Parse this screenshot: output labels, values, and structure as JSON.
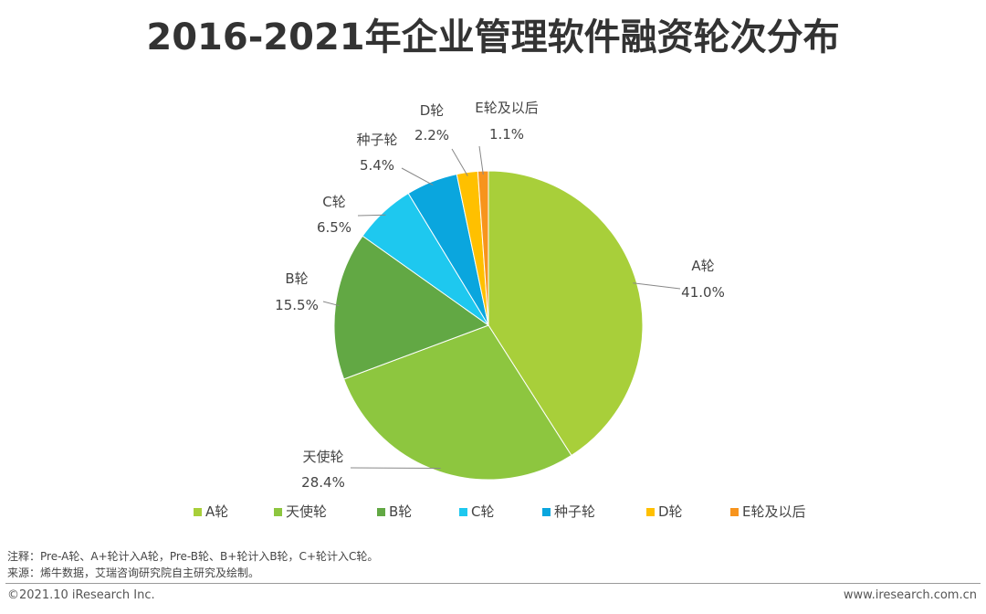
{
  "title": "2016-2021年企业管理软件融资轮次分布",
  "chart_data": {
    "type": "pie",
    "slices": [
      {
        "label": "A轮",
        "value": 41.0,
        "value_label": "41.0%",
        "color": "#a8cf3a"
      },
      {
        "label": "天使轮",
        "value": 28.4,
        "value_label": "28.4%",
        "color": "#8dc63f"
      },
      {
        "label": "B轮",
        "value": 15.5,
        "value_label": "15.5%",
        "color": "#62a844"
      },
      {
        "label": "C轮",
        "value": 6.5,
        "value_label": "6.5%",
        "color": "#1ec8ef"
      },
      {
        "label": "种子轮",
        "value": 5.4,
        "value_label": "5.4%",
        "color": "#0aa6de"
      },
      {
        "label": "D轮",
        "value": 2.2,
        "value_label": "2.2%",
        "color": "#ffc000"
      },
      {
        "label": "E轮及以后",
        "value": 1.1,
        "value_label": "1.1%",
        "color": "#f7941d"
      }
    ],
    "legend_position": "bottom"
  },
  "notes": {
    "note1": "注释：Pre-A轮、A+轮计入A轮，Pre-B轮、B+轮计入B轮，C+轮计入C轮。",
    "source": "来源：烯牛数据，艾瑞咨询研究院自主研究及绘制。"
  },
  "footer": {
    "copyright": "©2021.10 iResearch Inc.",
    "website": "www.iresearch.com.cn"
  }
}
